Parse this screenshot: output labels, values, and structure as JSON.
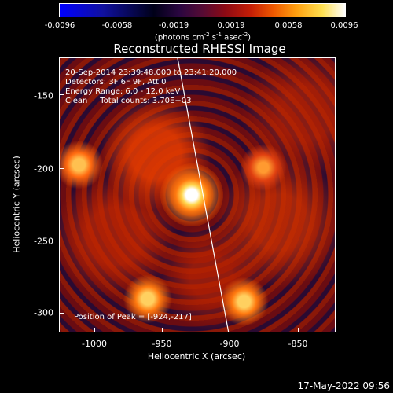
{
  "colorbar": {
    "ticks": [
      "-0.0096",
      "-0.0058",
      "-0.0019",
      "0.0019",
      "0.0058",
      "0.0096"
    ],
    "units_pre": "(photons cm",
    "units_sup1": "-2",
    "units_mid": " s",
    "units_sup2": "-1",
    "units_mid2": " asec",
    "units_sup3": "-2",
    "units_post": ")"
  },
  "title": "Reconstructed RHESSI Image",
  "annotations": {
    "time_range": "20-Sep-2014 23:39:48.000 to 23:41:20.000",
    "detectors": "Detectors: 3F 6F 9F, Att 0",
    "energy": "Energy Range: 6.0 - 12.0 keV",
    "clean": "Clean     Total counts: 3.70E+03",
    "peak": "Position of Peak = [-924,-217]"
  },
  "axes": {
    "xlabel": "Heliocentric X (arcsec)",
    "ylabel": "Heliocentric Y (arcsec)",
    "xticks": [
      "-1000",
      "-950",
      "-900",
      "-850"
    ],
    "yticks": [
      "-150",
      "-200",
      "-250",
      "-300"
    ]
  },
  "timestamp": "17-May-2022 09:56"
}
